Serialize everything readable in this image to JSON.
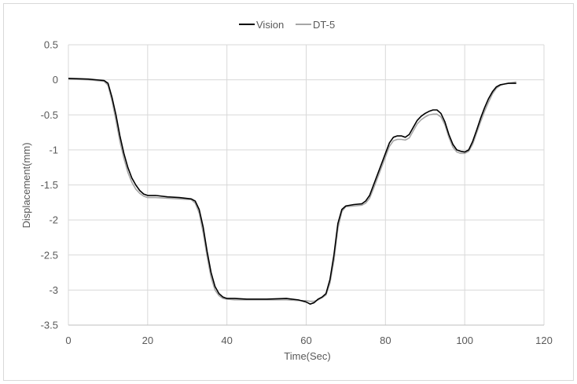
{
  "chart_data": {
    "type": "line",
    "title": "",
    "xlabel": "Time(Sec)",
    "ylabel": "Displacement(mm)",
    "xlim": [
      0,
      120
    ],
    "ylim": [
      -3.5,
      0.5
    ],
    "x_ticks": [
      0,
      20,
      40,
      60,
      80,
      100,
      120
    ],
    "y_ticks": [
      0.5,
      0,
      -0.5,
      -1,
      -1.5,
      -2,
      -2.5,
      -3,
      -3.5
    ],
    "x_tick_labels": [
      "0",
      "20",
      "40",
      "60",
      "80",
      "100",
      "120"
    ],
    "y_tick_labels": [
      "0.5",
      "0",
      "-0.5",
      "-1",
      "-1.5",
      "-2",
      "-2.5",
      "-3",
      "-3.5"
    ],
    "grid": true,
    "legend_position": "top-center",
    "series": [
      {
        "name": "Vision",
        "color": "#000000",
        "x": [
          0,
          5,
          9,
          10,
          11,
          12,
          13,
          14,
          15,
          16,
          17,
          18,
          19,
          20,
          22,
          25,
          28,
          31,
          32,
          33,
          34,
          35,
          36,
          37,
          38,
          39,
          40,
          42,
          45,
          50,
          55,
          58,
          60,
          61,
          62,
          63,
          64,
          65,
          66,
          67,
          68,
          69,
          70,
          72,
          74,
          75,
          76,
          77,
          78,
          79,
          80,
          81,
          82,
          83,
          84,
          85,
          86,
          87,
          88,
          89,
          90,
          91,
          92,
          93,
          94,
          95,
          96,
          97,
          98,
          99,
          100,
          101,
          102,
          103,
          104,
          105,
          106,
          107,
          108,
          109,
          110,
          111,
          112,
          113
        ],
        "y": [
          0.02,
          0.01,
          -0.01,
          -0.05,
          -0.25,
          -0.5,
          -0.8,
          -1.05,
          -1.25,
          -1.4,
          -1.5,
          -1.58,
          -1.63,
          -1.65,
          -1.65,
          -1.67,
          -1.68,
          -1.7,
          -1.73,
          -1.85,
          -2.1,
          -2.45,
          -2.75,
          -2.95,
          -3.05,
          -3.1,
          -3.12,
          -3.12,
          -3.13,
          -3.13,
          -3.12,
          -3.14,
          -3.17,
          -3.2,
          -3.18,
          -3.13,
          -3.1,
          -3.05,
          -2.85,
          -2.5,
          -2.05,
          -1.85,
          -1.8,
          -1.78,
          -1.77,
          -1.73,
          -1.65,
          -1.5,
          -1.35,
          -1.2,
          -1.05,
          -0.9,
          -0.82,
          -0.8,
          -0.8,
          -0.82,
          -0.78,
          -0.68,
          -0.58,
          -0.52,
          -0.48,
          -0.45,
          -0.43,
          -0.43,
          -0.48,
          -0.6,
          -0.78,
          -0.92,
          -1.0,
          -1.02,
          -1.03,
          -1.0,
          -0.88,
          -0.72,
          -0.55,
          -0.4,
          -0.27,
          -0.17,
          -0.1,
          -0.07,
          -0.06,
          -0.05,
          -0.05,
          -0.05
        ]
      },
      {
        "name": "DT-5",
        "color": "#a6a6a6",
        "x": [
          0,
          5,
          9,
          10,
          11,
          12,
          13,
          14,
          15,
          16,
          17,
          18,
          19,
          20,
          22,
          25,
          28,
          31,
          32,
          33,
          34,
          35,
          36,
          37,
          38,
          39,
          40,
          42,
          45,
          50,
          55,
          58,
          60,
          61,
          62,
          63,
          64,
          65,
          66,
          67,
          68,
          69,
          70,
          72,
          74,
          75,
          76,
          77,
          78,
          79,
          80,
          81,
          82,
          83,
          84,
          85,
          86,
          87,
          88,
          89,
          90,
          91,
          92,
          93,
          94,
          95,
          96,
          97,
          98,
          99,
          100,
          101,
          102,
          103,
          104,
          105,
          106,
          107,
          108,
          109,
          110,
          111,
          112,
          113
        ],
        "y": [
          0.01,
          0.0,
          -0.02,
          -0.08,
          -0.3,
          -0.58,
          -0.88,
          -1.12,
          -1.32,
          -1.46,
          -1.56,
          -1.62,
          -1.66,
          -1.68,
          -1.68,
          -1.69,
          -1.7,
          -1.71,
          -1.76,
          -1.9,
          -2.18,
          -2.52,
          -2.82,
          -3.0,
          -3.08,
          -3.12,
          -3.13,
          -3.14,
          -3.14,
          -3.14,
          -3.14,
          -3.15,
          -3.15,
          -3.16,
          -3.16,
          -3.14,
          -3.11,
          -3.07,
          -2.9,
          -2.58,
          -2.12,
          -1.88,
          -1.81,
          -1.8,
          -1.79,
          -1.76,
          -1.69,
          -1.55,
          -1.4,
          -1.25,
          -1.1,
          -0.95,
          -0.87,
          -0.85,
          -0.85,
          -0.86,
          -0.83,
          -0.73,
          -0.63,
          -0.57,
          -0.53,
          -0.5,
          -0.49,
          -0.49,
          -0.53,
          -0.64,
          -0.82,
          -0.96,
          -1.03,
          -1.05,
          -1.05,
          -1.02,
          -0.92,
          -0.76,
          -0.6,
          -0.45,
          -0.32,
          -0.2,
          -0.12,
          -0.08,
          -0.06,
          -0.05,
          -0.04,
          -0.03
        ]
      }
    ]
  }
}
